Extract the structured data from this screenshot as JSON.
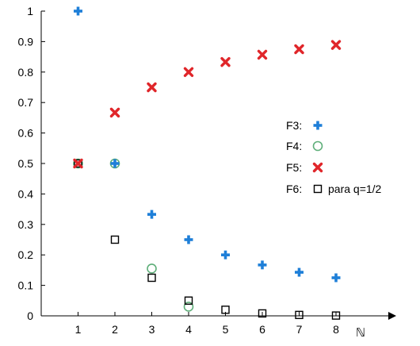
{
  "chart_data": {
    "type": "scatter",
    "title": "",
    "xlabel": "ℕ",
    "ylabel": "",
    "xlim": [
      0,
      8.8
    ],
    "ylim": [
      0,
      1
    ],
    "grid": false,
    "x_ticks": [
      "1",
      "2",
      "3",
      "4",
      "5",
      "6",
      "7",
      "8"
    ],
    "y_ticks": [
      "0",
      "0.1",
      "0.2",
      "0.3",
      "0.4",
      "0.5",
      "0.6",
      "0.7",
      "0.8",
      "0.9",
      "1"
    ],
    "legend_position": "right",
    "series": [
      {
        "name": "F3:",
        "marker": "plus",
        "color": "#1E7FD8",
        "x": [
          1,
          2,
          3,
          4,
          5,
          6,
          7,
          8
        ],
        "values": [
          1,
          0.5,
          0.333,
          0.25,
          0.2,
          0.167,
          0.143,
          0.125
        ]
      },
      {
        "name": "F4:",
        "marker": "circle",
        "color": "#5FAF7A",
        "x": [
          1,
          2,
          3,
          4
        ],
        "values": [
          0.5,
          0.5,
          0.155,
          0.03
        ]
      },
      {
        "name": "F5:",
        "marker": "x",
        "color": "#E0262A",
        "x": [
          1,
          2,
          3,
          4,
          5,
          6,
          7,
          8
        ],
        "values": [
          0.5,
          0.667,
          0.75,
          0.8,
          0.833,
          0.857,
          0.875,
          0.889
        ]
      },
      {
        "name": "F6:",
        "suffix": "para  q=1/2",
        "marker": "square",
        "color": "#000000",
        "x": [
          1,
          2,
          3,
          4,
          5,
          6,
          7,
          8
        ],
        "values": [
          0.5,
          0.25,
          0.125,
          0.05,
          0.02,
          0.008,
          0.003,
          0.001
        ]
      }
    ]
  }
}
